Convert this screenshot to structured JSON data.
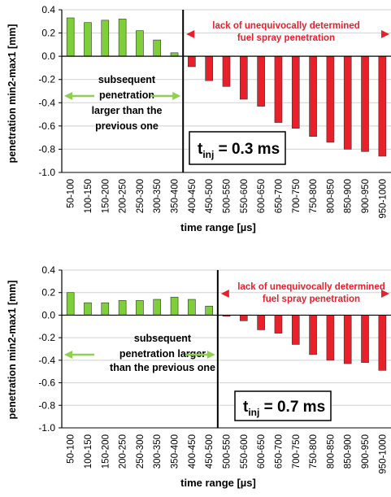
{
  "colors": {
    "green": "#7fcf3a",
    "red": "#e8202a",
    "axis": "#000000",
    "grid": "#d0d0d0",
    "annotation": "#e8202a",
    "arrow_green": "#8fd14f"
  },
  "chart_data": [
    {
      "type": "bar",
      "xlabel": "time range [µs]",
      "ylabel": "penetration min2-max1 [mm]",
      "ylim": [
        -1.0,
        0.4
      ],
      "yticks": [
        "0.4",
        "0.2",
        "0.0",
        "-0.2",
        "-0.4",
        "-0.6",
        "-0.8",
        "-1.0"
      ],
      "grid": true,
      "categories": [
        "50-100",
        "100-150",
        "150-200",
        "200-250",
        "250-300",
        "300-350",
        "350-400",
        "400-450",
        "450-500",
        "500-550",
        "550-600",
        "600-650",
        "650-700",
        "700-750",
        "750-800",
        "800-850",
        "850-900",
        "900-950",
        "950-1000"
      ],
      "values": [
        0.33,
        0.29,
        0.31,
        0.32,
        0.22,
        0.14,
        0.03,
        -0.09,
        -0.21,
        -0.26,
        -0.37,
        -0.43,
        -0.57,
        -0.62,
        -0.69,
        -0.74,
        -0.8,
        -0.82,
        -0.86
      ],
      "split_index": 7,
      "annotations": {
        "left": [
          "subsequent",
          "penetration",
          "larger than the",
          "previous one"
        ],
        "right": [
          "lack of unequivocally determined",
          "fuel spray penetration"
        ],
        "tinj_main": "t",
        "tinj_sub": "inj",
        "tinj_value": " = 0.3 ms"
      }
    },
    {
      "type": "bar",
      "xlabel": "time range [µs]",
      "ylabel": "penetration min2-max1 [mm]",
      "ylim": [
        -1.0,
        0.4
      ],
      "yticks": [
        "0.4",
        "0.2",
        "0.0",
        "-0.2",
        "-0.4",
        "-0.6",
        "-0.8",
        "-1.0"
      ],
      "grid": true,
      "categories": [
        "50-100",
        "100-150",
        "150-200",
        "200-250",
        "250-300",
        "300-350",
        "350-400",
        "400-450",
        "450-500",
        "500-550",
        "550-600",
        "600-650",
        "650-700",
        "700-750",
        "750-800",
        "800-850",
        "850-900",
        "900-950",
        "950-1000"
      ],
      "values": [
        0.2,
        0.11,
        0.11,
        0.13,
        0.13,
        0.14,
        0.16,
        0.14,
        0.08,
        -0.01,
        -0.05,
        -0.13,
        -0.16,
        -0.26,
        -0.35,
        -0.4,
        -0.43,
        -0.42,
        -0.49
      ],
      "split_index": 9,
      "annotations": {
        "left": [
          "subsequent",
          "penetration larger",
          "than the previous one"
        ],
        "right": [
          "lack of unequivocally determined",
          "fuel spray penetration"
        ],
        "tinj_main": "t",
        "tinj_sub": "inj",
        "tinj_value": " = 0.7 ms"
      }
    }
  ]
}
